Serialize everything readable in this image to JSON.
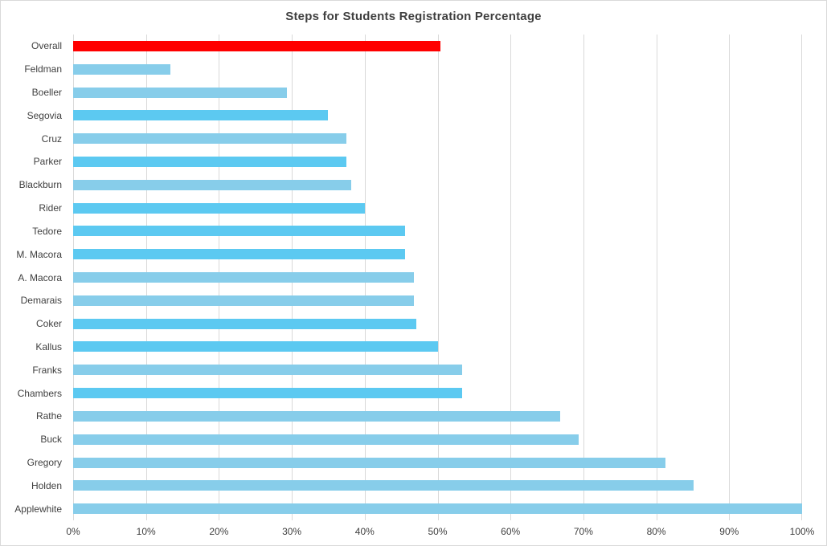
{
  "chart": {
    "title": "Steps for Students Registration Percentage"
  },
  "chart_data": {
    "type": "bar",
    "orientation": "horizontal",
    "title": "Steps for Students Registration Percentage",
    "xlabel": "",
    "ylabel": "",
    "xlim": [
      0,
      100
    ],
    "x_tick_labels": [
      "0%",
      "10%",
      "20%",
      "30%",
      "40%",
      "50%",
      "60%",
      "70%",
      "80%",
      "90%",
      "100%"
    ],
    "grid": "vertical",
    "legend": "none",
    "colors": {
      "red": "#ff0000",
      "light": "#87cdea",
      "bright": "#5cc9f1"
    },
    "gridline_color": "#d9d9d9",
    "bars": [
      {
        "label": "Overall",
        "value": 50.4,
        "color": "red"
      },
      {
        "label": "Feldman",
        "value": 13.3,
        "color": "light"
      },
      {
        "label": "Boeller",
        "value": 29.3,
        "color": "light"
      },
      {
        "label": "Segovia",
        "value": 35.0,
        "color": "bright"
      },
      {
        "label": "Cruz",
        "value": 37.5,
        "color": "light"
      },
      {
        "label": "Parker",
        "value": 37.5,
        "color": "bright"
      },
      {
        "label": "Blackburn",
        "value": 38.1,
        "color": "light"
      },
      {
        "label": "Rider",
        "value": 40.0,
        "color": "bright"
      },
      {
        "label": "Tedore",
        "value": 45.5,
        "color": "bright"
      },
      {
        "label": "M. Macora",
        "value": 45.5,
        "color": "bright"
      },
      {
        "label": "A. Macora",
        "value": 46.7,
        "color": "light"
      },
      {
        "label": "Demarais",
        "value": 46.7,
        "color": "light"
      },
      {
        "label": "Coker",
        "value": 47.1,
        "color": "bright"
      },
      {
        "label": "Kallus",
        "value": 50.0,
        "color": "bright"
      },
      {
        "label": "Franks",
        "value": 53.4,
        "color": "light"
      },
      {
        "label": "Chambers",
        "value": 53.4,
        "color": "bright"
      },
      {
        "label": "Rathe",
        "value": 66.8,
        "color": "light"
      },
      {
        "label": "Buck",
        "value": 69.3,
        "color": "light"
      },
      {
        "label": "Gregory",
        "value": 81.3,
        "color": "light"
      },
      {
        "label": "Holden",
        "value": 85.1,
        "color": "light"
      },
      {
        "label": "Applewhite",
        "value": 100.0,
        "color": "light"
      }
    ]
  }
}
